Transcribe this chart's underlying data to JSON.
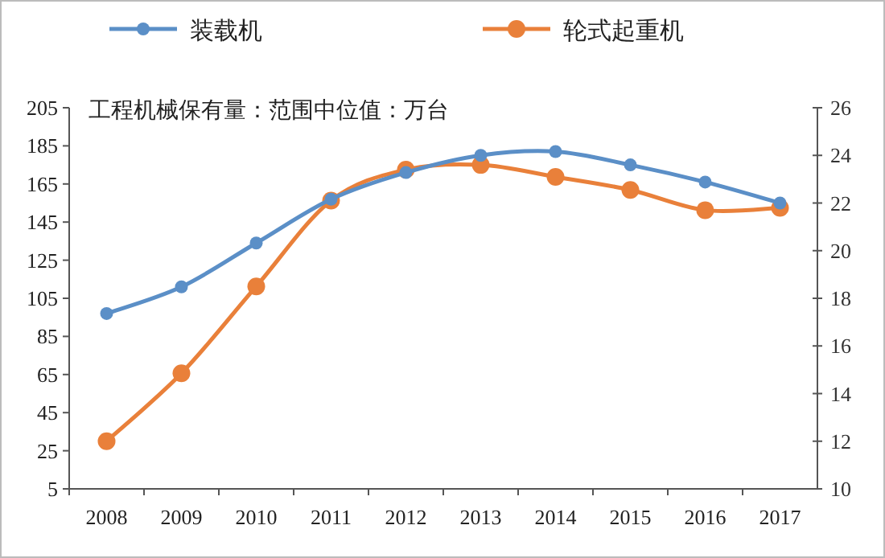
{
  "chart_data": {
    "type": "line",
    "title": "工程机械保有量：范围中位值：万台",
    "categories": [
      "2008",
      "2009",
      "2010",
      "2011",
      "2012",
      "2013",
      "2014",
      "2015",
      "2016",
      "2017"
    ],
    "series": [
      {
        "name": "装载机",
        "color": "#5b8fc7",
        "values": [
          97,
          111,
          134,
          157,
          171,
          180,
          182,
          175,
          166,
          155
        ]
      },
      {
        "name": "轮式起重机",
        "color": "#e9803a",
        "axis": "y2",
        "values": [
          12.0,
          14.85,
          18.5,
          22.1,
          23.4,
          23.6,
          23.1,
          22.55,
          21.7,
          21.8
        ]
      }
    ],
    "ylim": [
      5,
      205
    ],
    "yticks": [
      5,
      25,
      45,
      65,
      85,
      105,
      125,
      145,
      165,
      185,
      205
    ],
    "y2lim": [
      10,
      26
    ],
    "y2ticks": [
      10,
      12,
      14,
      16,
      18,
      20,
      22,
      24,
      26
    ],
    "legend": "top",
    "marker": "circle",
    "line_style": "solid",
    "grid": false
  }
}
